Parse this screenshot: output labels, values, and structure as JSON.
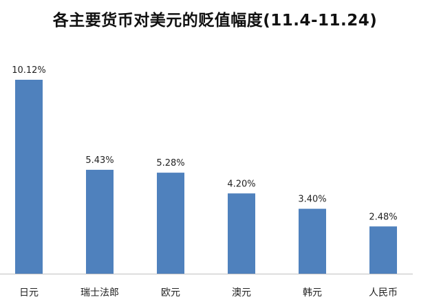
{
  "chart_data": {
    "type": "bar",
    "title": "各主要货币对美元的贬值幅度(11.4-11.24)",
    "xlabel": "",
    "ylabel": "",
    "categories": [
      "日元",
      "瑞士法郎",
      "欧元",
      "澳元",
      "韩元",
      "人民币"
    ],
    "values": [
      10.12,
      5.43,
      5.28,
      4.2,
      3.4,
      2.48
    ],
    "value_labels": [
      "10.12%",
      "5.43%",
      "5.28%",
      "4.20%",
      "3.40%",
      "2.48%"
    ],
    "value_unit": "%",
    "ylim": [
      0,
      10.12
    ],
    "grid": false,
    "legend": "none",
    "bar_color": "#4f81bd",
    "axis_color": "#bfbfbf"
  }
}
